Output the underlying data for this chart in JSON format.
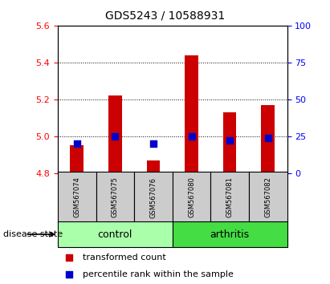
{
  "title": "GDS5243 / 10588931",
  "samples": [
    "GSM567074",
    "GSM567075",
    "GSM567076",
    "GSM567080",
    "GSM567081",
    "GSM567082"
  ],
  "bar_bottom": 4.8,
  "bar_tops": [
    4.95,
    5.22,
    4.87,
    5.44,
    5.13,
    5.17
  ],
  "percentile_values": [
    20.0,
    25.0,
    20.0,
    25.0,
    22.0,
    24.0
  ],
  "ylim": [
    4.8,
    5.6
  ],
  "y_ticks_left": [
    4.8,
    5.0,
    5.2,
    5.4,
    5.6
  ],
  "y_ticks_right": [
    0,
    25,
    50,
    75,
    100
  ],
  "bar_color": "#CC0000",
  "dot_color": "#0000CC",
  "control_color": "#AAFFAA",
  "arthritis_color": "#44DD44",
  "sample_box_color": "#CCCCCC",
  "dot_size": 35,
  "bar_width": 0.35,
  "title_fontsize": 10,
  "tick_fontsize": 8,
  "label_fontsize": 8,
  "sample_fontsize": 6,
  "group_fontsize": 9
}
